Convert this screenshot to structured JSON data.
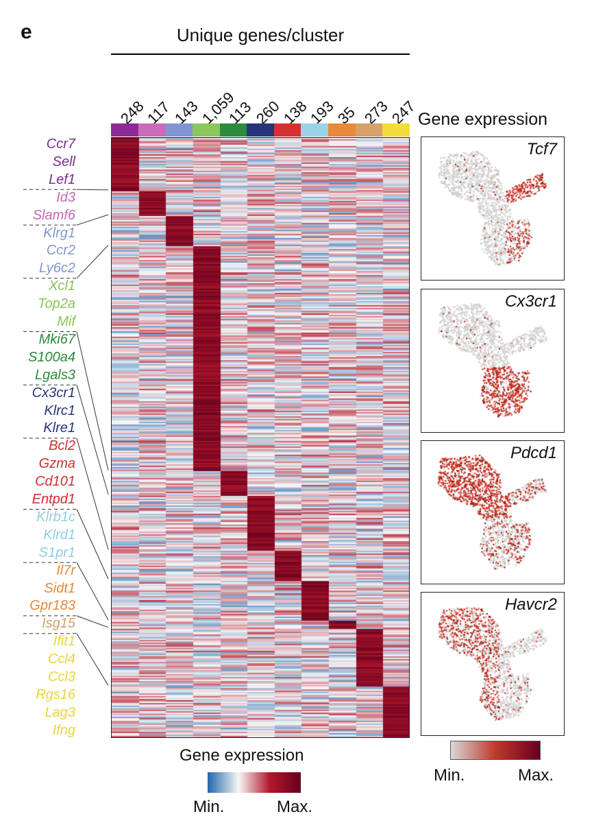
{
  "panel_label": "e",
  "unique_title": "Unique genes/cluster",
  "clusters": [
    {
      "count": "248",
      "color": "#8e2a96"
    },
    {
      "count": "117",
      "color": "#c86cb8"
    },
    {
      "count": "143",
      "color": "#8196d0"
    },
    {
      "count": "1,059",
      "color": "#8ec65e"
    },
    {
      "count": "113",
      "color": "#2e8a3e"
    },
    {
      "count": "260",
      "color": "#26347a"
    },
    {
      "count": "138",
      "color": "#d63131"
    },
    {
      "count": "193",
      "color": "#9ad4e4"
    },
    {
      "count": "35",
      "color": "#e88a3a"
    },
    {
      "count": "273",
      "color": "#d6a16a"
    },
    {
      "count": "247",
      "color": "#f2dc3c"
    }
  ],
  "genes": [
    {
      "name": "Ccr7",
      "color": "#7b2b8f"
    },
    {
      "name": "Sell",
      "color": "#7b2b8f"
    },
    {
      "name": "Lef1",
      "color": "#7b2b8f"
    },
    {
      "name": "Id3",
      "color": "#c268b5"
    },
    {
      "name": "Slamf6",
      "color": "#c268b5"
    },
    {
      "name": "Klrg1",
      "color": "#7f96d0"
    },
    {
      "name": "Ccr2",
      "color": "#7f96d0"
    },
    {
      "name": "Ly6c2",
      "color": "#7f96d0"
    },
    {
      "name": "Xcl1",
      "color": "#86c35a"
    },
    {
      "name": "Top2a",
      "color": "#86c35a"
    },
    {
      "name": "Mif",
      "color": "#86c35a"
    },
    {
      "name": "Mki67",
      "color": "#2b8a3b"
    },
    {
      "name": "S100a4",
      "color": "#2b8a3b"
    },
    {
      "name": "Lgals3",
      "color": "#2b8a3b"
    },
    {
      "name": "Cx3cr1",
      "color": "#263377"
    },
    {
      "name": "Klrc1",
      "color": "#263377"
    },
    {
      "name": "Klre1",
      "color": "#263377"
    },
    {
      "name": "Bcl2",
      "color": "#cf2f2f"
    },
    {
      "name": "Gzma",
      "color": "#cf2f2f"
    },
    {
      "name": "Cd101",
      "color": "#cf2f2f"
    },
    {
      "name": "Entpd1",
      "color": "#cf2f2f"
    },
    {
      "name": "Klrb1c",
      "color": "#8fcde0"
    },
    {
      "name": "Klrd1",
      "color": "#8fcde0"
    },
    {
      "name": "S1pr1",
      "color": "#8fcde0"
    },
    {
      "name": "Il7r",
      "color": "#e58a3a"
    },
    {
      "name": "Sidt1",
      "color": "#e58a3a"
    },
    {
      "name": "Gpr183",
      "color": "#e58a3a"
    },
    {
      "name": "Isg15",
      "color": "#d3a06a"
    },
    {
      "name": "Ifit1",
      "color": "#ead43a"
    },
    {
      "name": "Ccl4",
      "color": "#ead43a"
    },
    {
      "name": "Ccl3",
      "color": "#ead43a"
    },
    {
      "name": "Rgs16",
      "color": "#ead43a"
    },
    {
      "name": "Lag3",
      "color": "#ead43a"
    },
    {
      "name": "Ifng",
      "color": "#ead43a"
    }
  ],
  "right_title": "Gene expression",
  "umaps": [
    {
      "gene": "Tcf7",
      "pattern": "naive"
    },
    {
      "gene": "Cx3cr1",
      "pattern": "effector"
    },
    {
      "gene": "Pdcd1",
      "pattern": "exhausted"
    },
    {
      "gene": "Havcr2",
      "pattern": "partial"
    }
  ],
  "heat_legend": {
    "title": "Gene expression",
    "min": "Min.",
    "max": "Max.",
    "colors": [
      "#2166ac",
      "#f7f7f7",
      "#b2182b",
      "#67001f"
    ]
  },
  "umap_legend": {
    "min": "Min.",
    "max": "Max.",
    "colors": [
      "#d9d9d9",
      "#c0392b",
      "#67001f"
    ]
  }
}
